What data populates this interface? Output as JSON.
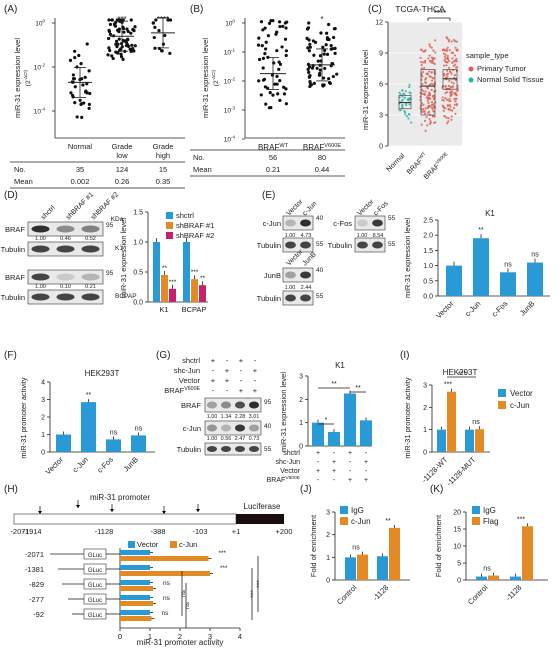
{
  "colors": {
    "blue": "#2a9ad6",
    "orange": "#e48a24",
    "magenta": "#c8206d",
    "teal": "#2bb2a5",
    "red": "#e05a4d",
    "grey": "#666666"
  },
  "panels": {
    "A": "(A)",
    "B": "(B)",
    "C": "(C)",
    "D": "(D)",
    "E": "(E)",
    "F": "(F)",
    "G": "(G)",
    "H": "(H)",
    "I": "(I)",
    "J": "(J)",
    "K": "(K)"
  },
  "chart_data": [
    {
      "panel": "A",
      "type": "scatter",
      "ylabel": "miR-31 expression level",
      "ylabel2": "(2^-ΔCt)",
      "ylim_log10": [
        -5,
        0
      ],
      "yticks": [
        "10^0",
        "10^-2",
        "10^-4"
      ],
      "categories": [
        "Normal",
        "Grade low",
        "Grade high"
      ],
      "means": [
        0.002,
        0.26,
        0.35
      ],
      "sig": [
        "",
        "***",
        "****"
      ],
      "table": {
        "row1_label": "No.",
        "row1": [
          "35",
          "124",
          "15"
        ],
        "row2_label": "Mean",
        "row2": [
          "0.002",
          "0.26",
          "0.35"
        ]
      }
    },
    {
      "panel": "B",
      "type": "scatter",
      "ylabel": "miR-31 expression level",
      "ylabel2": "(2^-ΔCt)",
      "ylim_log10": [
        -4,
        0
      ],
      "yticks": [
        "10^0",
        "10^-1",
        "10^-2",
        "10^-3",
        "10^-4"
      ],
      "categories": [
        "BRAF^WT",
        "BRAF^V600E"
      ],
      "means": [
        0.21,
        0.44
      ],
      "sig": [
        "",
        "*"
      ],
      "table": {
        "row1_label": "No.",
        "row1": [
          "56",
          "80"
        ],
        "row2_label": "Mean",
        "row2": [
          "0.21",
          "0.44"
        ]
      }
    },
    {
      "panel": "C",
      "type": "box",
      "title": "TCGA-THCA",
      "ylabel": "miR-31 expression level",
      "ylim": [
        0,
        12
      ],
      "yticks": [
        "0",
        "3",
        "6",
        "9",
        "12"
      ],
      "categories": [
        "Normal",
        "BRAF^WT",
        "BRAF^V600E"
      ],
      "medians": [
        4.2,
        5.8,
        6.5
      ],
      "sig": "****",
      "legend_title": "sample_type",
      "legend": [
        "Primary Tumor",
        "Normal Solid Tissue"
      ]
    },
    {
      "panel": "D",
      "type": "bar",
      "ylabel": "miR-31 expression level",
      "ylim": [
        0,
        1.5
      ],
      "yticks": [
        "0.0",
        "0.5",
        "1.0",
        "1.5"
      ],
      "categories": [
        "K1",
        "BCPAP"
      ],
      "series": [
        {
          "name": "shctrl",
          "values": [
            1.0,
            1.0
          ]
        },
        {
          "name": "shBRAF #1",
          "values": [
            0.45,
            0.38
          ]
        },
        {
          "name": "shBRAF #2",
          "values": [
            0.22,
            0.28
          ]
        }
      ],
      "sig": [
        [
          "",
          "**",
          "***"
        ],
        [
          "",
          "***",
          "**"
        ]
      ],
      "blot": {
        "lanes": [
          "shctrl",
          "shBRAF #1",
          "shBRAF #2"
        ],
        "kda": "KDa",
        "rows": [
          "BRAF",
          "Tubulin",
          "BRAF",
          "Tubulin"
        ],
        "mw": [
          "95",
          "",
          "95",
          ""
        ],
        "q1": [
          "1.00",
          "0.46",
          "0.52"
        ],
        "q2": [
          "1.00",
          "0.10",
          "0.21"
        ],
        "cell1": "K1",
        "cell2": "BCPAP"
      }
    },
    {
      "panel": "E",
      "type": "bar",
      "title": "K1",
      "ylabel": "miR-31 expression level",
      "ylim": [
        0,
        2.5
      ],
      "yticks": [
        "0.0",
        "0.5",
        "1.0",
        "1.5",
        "2.0",
        "2.5"
      ],
      "categories": [
        "Vector",
        "c-Jun",
        "c-Fos",
        "JunB"
      ],
      "values": [
        1.0,
        1.9,
        0.78,
        1.1
      ],
      "sig": [
        "",
        "**",
        "ns",
        "ns"
      ],
      "blot": {
        "g1": [
          "Vector",
          "c-Jun"
        ],
        "g2": [
          "Vector",
          "c-Fos"
        ],
        "g3": [
          "Vector",
          "JunB"
        ],
        "rows": [
          "c-Jun",
          "Tubulin",
          "c-Fos",
          "Tubulin",
          "JunB",
          "Tubulin"
        ],
        "mw": [
          "40",
          "55",
          "55",
          "55",
          "40",
          "55"
        ],
        "q1": [
          "1.00",
          "4.73"
        ],
        "q2": [
          "1.00",
          "8.54"
        ],
        "q3": [
          "1.00",
          "2.44"
        ]
      }
    },
    {
      "panel": "F",
      "type": "bar",
      "title": "HEK293T",
      "ylabel": "miR-31 promoter activity",
      "ylim": [
        0,
        4
      ],
      "yticks": [
        "0",
        "1",
        "2",
        "3",
        "4"
      ],
      "categories": [
        "Vector",
        "c-Jun",
        "c-Fos",
        "JunB"
      ],
      "values": [
        1.0,
        2.85,
        0.72,
        0.95
      ],
      "sig": [
        "",
        "**",
        "ns",
        "ns"
      ]
    },
    {
      "panel": "G",
      "type": "bar",
      "title": "K1",
      "ylabel": "miR-31 expression level",
      "ylim": [
        0,
        3
      ],
      "yticks": [
        "0",
        "1",
        "2",
        "3"
      ],
      "values": [
        1.0,
        0.6,
        2.25,
        1.1
      ],
      "sig_pairs": [
        "*",
        "**",
        "**"
      ],
      "conditions": {
        "labels": [
          "shctrl",
          "shc-Jun",
          "Vector",
          "BRAF^V600E"
        ],
        "matrix": [
          [
            "+",
            "-",
            "+",
            "-"
          ],
          [
            "-",
            "+",
            "-",
            "+"
          ],
          [
            "+",
            "+",
            "-",
            "-"
          ],
          [
            "-",
            "-",
            "+",
            "+"
          ]
        ]
      },
      "blot": {
        "rows": [
          "BRAF",
          "c-Jun",
          "Tubulin"
        ],
        "mw": [
          "95",
          "40",
          "55"
        ],
        "q1": [
          "1.00",
          "1.34",
          "2.28",
          "3.01"
        ],
        "q2": [
          "1.00",
          "0.56",
          "2.47",
          "0.73"
        ]
      }
    },
    {
      "panel": "I",
      "type": "bar",
      "title": "HEK293T",
      "ylabel": "miR-31 promoter activity",
      "ylim": [
        0,
        3
      ],
      "yticks": [
        "0",
        "1",
        "2",
        "3"
      ],
      "categories": [
        "-1128-WT",
        "-1128-MUT"
      ],
      "series": [
        {
          "name": "Vector",
          "values": [
            1.0,
            1.0
          ]
        },
        {
          "name": "c-Jun",
          "values": [
            2.7,
            1.02
          ]
        }
      ],
      "sig": [
        "***",
        "ns"
      ],
      "bracket": "***"
    },
    {
      "panel": "H",
      "type": "bar",
      "orientation": "horizontal",
      "xlabel": "miR-31 promoter activity",
      "xlim": [
        0,
        4
      ],
      "xticks": [
        "0",
        "1",
        "2",
        "3",
        "4"
      ],
      "categories": [
        "-2071",
        "-1381",
        "-829",
        "-277",
        "-92"
      ],
      "series": [
        {
          "name": "Vector",
          "values": [
            1.0,
            1.0,
            1.0,
            1.0,
            1.0
          ]
        },
        {
          "name": "c-Jun",
          "values": [
            2.95,
            3.0,
            1.1,
            1.1,
            1.05
          ]
        }
      ],
      "sig": [
        "***",
        "***",
        "ns",
        "ns",
        "ns"
      ],
      "brackets": [
        "ns",
        "ns",
        "***",
        "***"
      ],
      "map": {
        "title": "miR-31 promoter",
        "luc": "Luciferase",
        "positions": [
          "-2071",
          "-1914",
          "-1128",
          "-388",
          "-103",
          "+1",
          "+200"
        ],
        "gluc": "GLuc"
      }
    },
    {
      "panel": "J",
      "type": "bar",
      "ylabel": "Fold of enrichment",
      "ylim": [
        0,
        3
      ],
      "yticks": [
        "0",
        "1",
        "2",
        "3"
      ],
      "categories": [
        "Control",
        "-1128"
      ],
      "series": [
        {
          "name": "IgG",
          "values": [
            1.0,
            1.05
          ]
        },
        {
          "name": "c-Jun",
          "values": [
            1.12,
            2.3
          ]
        }
      ],
      "sig": [
        "ns",
        "**"
      ]
    },
    {
      "panel": "K",
      "type": "bar",
      "ylabel": "Fold of enrichment",
      "ylim": [
        0,
        20
      ],
      "yticks": [
        "0",
        "5",
        "10",
        "15",
        "20"
      ],
      "categories": [
        "Control",
        "-1128"
      ],
      "series": [
        {
          "name": "IgG",
          "values": [
            1.0,
            1.0
          ]
        },
        {
          "name": "Flag",
          "values": [
            1.3,
            15.8
          ]
        }
      ],
      "sig": [
        "ns",
        "***"
      ]
    }
  ]
}
